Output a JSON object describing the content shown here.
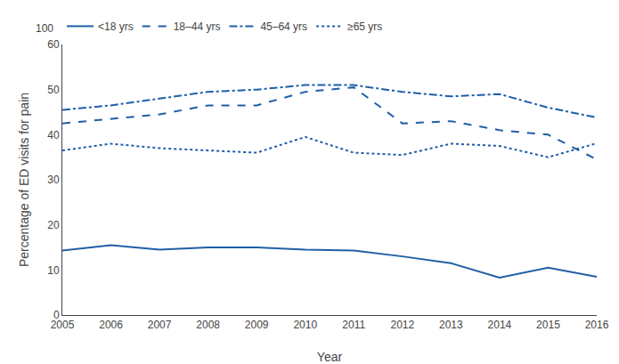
{
  "chart_data": {
    "type": "line",
    "x": [
      2005,
      2006,
      2007,
      2008,
      2009,
      2010,
      2011,
      2012,
      2013,
      2014,
      2015,
      2016
    ],
    "xlabel": "Year",
    "ylabel": "Percentage of ED visits for pain",
    "xlim": [
      2005,
      2016
    ],
    "xticks": [
      2005,
      2006,
      2007,
      2008,
      2009,
      2010,
      2011,
      2012,
      2013,
      2014,
      2015,
      2016
    ],
    "ylim": [
      0,
      60
    ],
    "yticks": [
      0,
      10,
      20,
      30,
      40,
      50,
      60
    ],
    "grid": false,
    "legend": "upper left",
    "annotations": [
      "100"
    ],
    "series": [
      {
        "name": "<18 yrs",
        "color": "#1f5fa6",
        "line_style": "solid",
        "values": [
          14.3,
          15.5,
          14.5,
          15.0,
          15.0,
          14.5,
          14.3,
          13.0,
          11.5,
          8.3,
          10.5,
          8.5
        ]
      },
      {
        "name": "18–44 yrs",
        "color": "#1f5fa6",
        "line_style": "dash",
        "values": [
          42.5,
          43.5,
          44.5,
          46.5,
          46.5,
          49.5,
          50.5,
          42.5,
          43.0,
          41.0,
          40.0,
          34.5
        ]
      },
      {
        "name": "45–64 yrs",
        "color": "#1f5fa6",
        "line_style": "dashdot",
        "values": [
          45.5,
          46.5,
          48.0,
          49.5,
          50.0,
          51.0,
          51.0,
          49.5,
          48.5,
          49.0,
          46.0,
          43.8
        ]
      },
      {
        "name": "≥65 yrs",
        "color": "#1f5fa6",
        "line_style": "dot",
        "values": [
          36.5,
          38.0,
          37.0,
          36.5,
          36.0,
          39.5,
          36.0,
          35.5,
          38.0,
          37.5,
          35.0,
          38.1
        ]
      }
    ]
  }
}
